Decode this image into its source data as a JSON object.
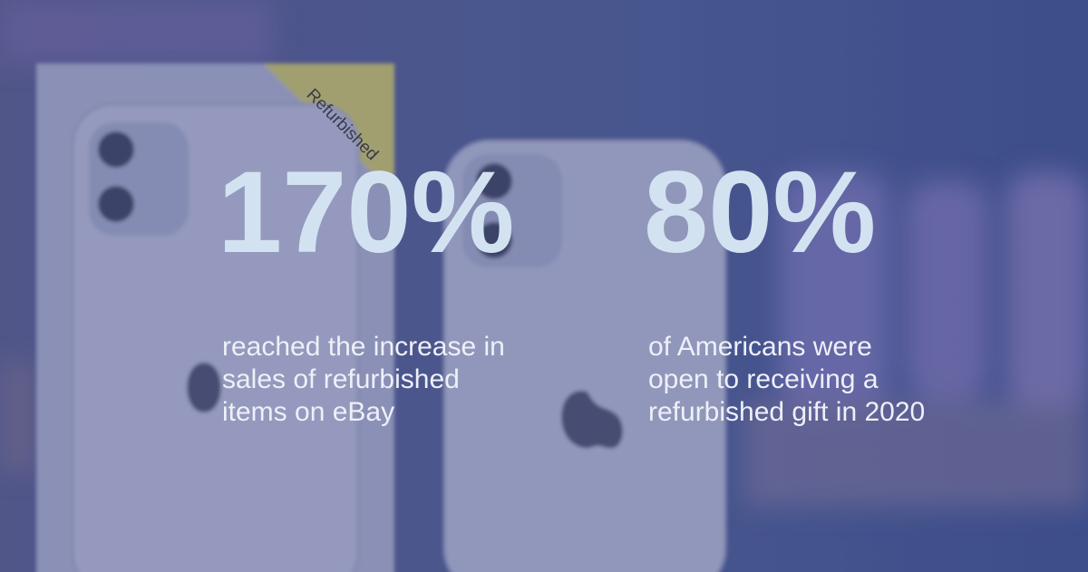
{
  "label": "Refurbished",
  "stats": [
    {
      "figure": "170%",
      "lines": [
        "reached the increase in",
        "sales of refurbished",
        "items on eBay"
      ]
    },
    {
      "figure": "80%",
      "lines": [
        "of Americans were",
        "open to receiving a",
        "refurbished gift in 2020"
      ]
    }
  ]
}
